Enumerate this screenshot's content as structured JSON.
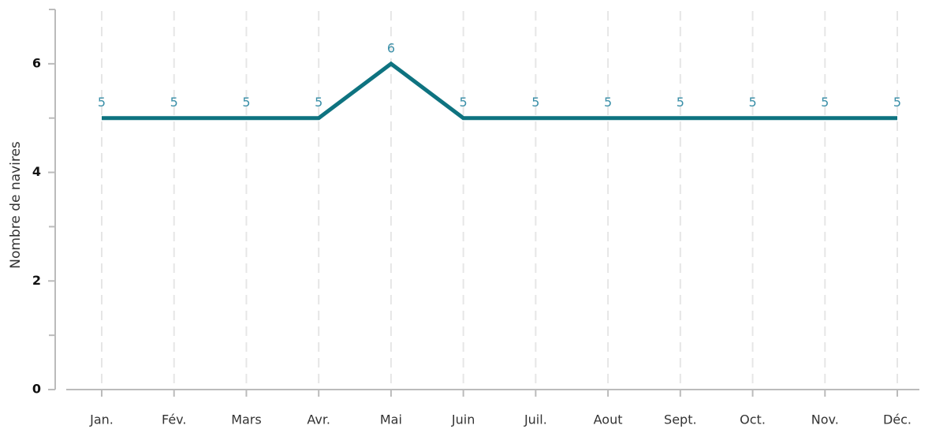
{
  "chart_data": {
    "type": "line",
    "y_label": "Nombre de navires",
    "categories": [
      "Jan.",
      "Fév.",
      "Mars",
      "Avr.",
      "Mai",
      "Juin",
      "Juil.",
      "Aout",
      "Sept.",
      "Oct.",
      "Nov.",
      "Déc."
    ],
    "series": [
      {
        "name": "Nombre de navires",
        "color": "#0e7380",
        "label_color": "#3a8fa8",
        "values": [
          5,
          5,
          5,
          5,
          6,
          5,
          5,
          5,
          5,
          5,
          5,
          5
        ]
      }
    ],
    "ylim": [
      0,
      7
    ],
    "yticks": [
      0,
      2,
      4,
      6
    ],
    "yminorticks": [
      1,
      3,
      5,
      7
    ],
    "grid": true
  }
}
